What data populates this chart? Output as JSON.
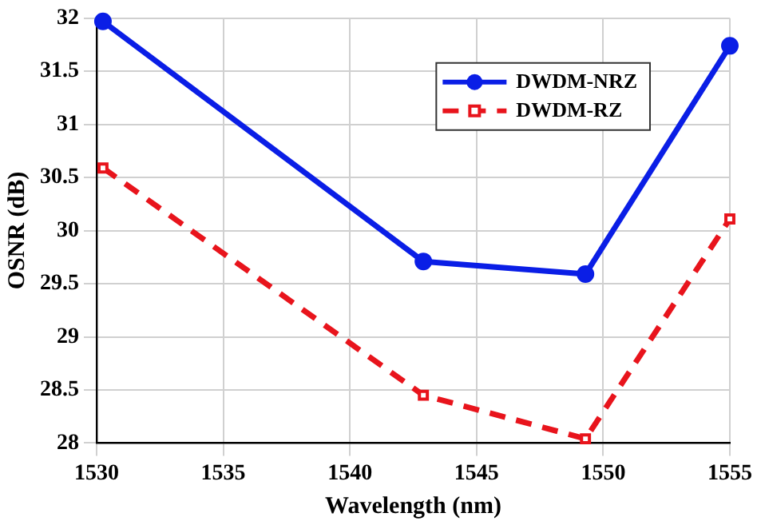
{
  "chart_data": {
    "type": "line",
    "xlabel": "Wavelength (nm)",
    "ylabel": "OSNR (dB)",
    "xlim": [
      1530,
      1555
    ],
    "xticks": [
      1530,
      1535,
      1540,
      1545,
      1550,
      1555
    ],
    "ylim": [
      28,
      32
    ],
    "yticks": [
      28,
      28.5,
      29,
      29.5,
      30,
      30.5,
      31,
      31.5,
      32
    ],
    "grid": true,
    "legend": "top right",
    "series": [
      {
        "name": "DWDM-NRZ",
        "color": "#0a1ee6",
        "x": [
          1530.25,
          1542.9,
          1549.3,
          1555
        ],
        "values": [
          31.97,
          29.71,
          29.59,
          31.74
        ],
        "marker": "circle",
        "line_style": "solid"
      },
      {
        "name": "DWDM-RZ",
        "color": "#e8141c",
        "x": [
          1530.25,
          1542.9,
          1549.3,
          1555
        ],
        "values": [
          30.59,
          28.45,
          28.04,
          30.11
        ],
        "marker": "square",
        "line_style": "dashed"
      }
    ]
  }
}
